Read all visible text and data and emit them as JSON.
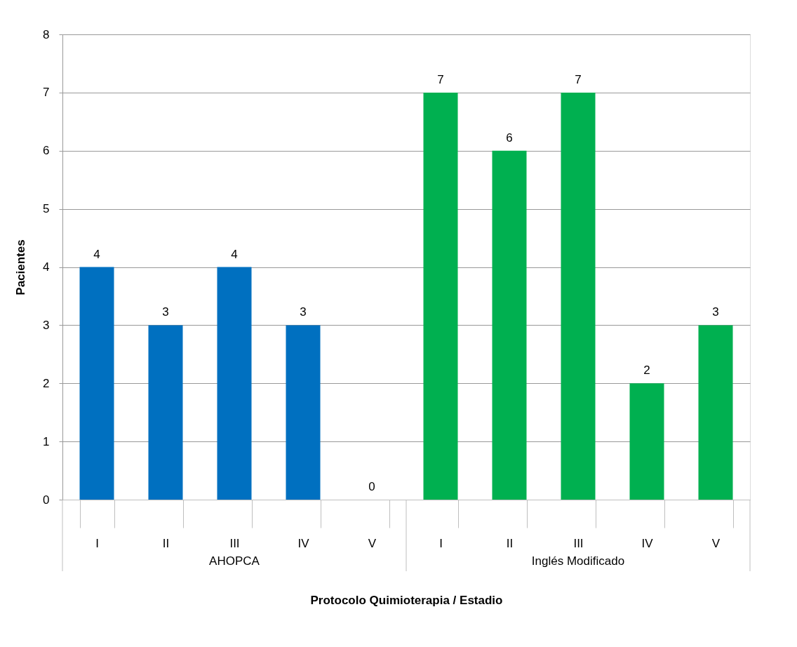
{
  "chart_data": {
    "type": "bar",
    "xlabel": "Protocolo Quimioterapia / Estadio",
    "ylabel": "Pacientes",
    "categories": [
      "I",
      "II",
      "III",
      "IV",
      "V",
      "I",
      "II",
      "III",
      "IV",
      "V"
    ],
    "series": [
      {
        "color": "#0070c0",
        "values": [
          4,
          3,
          4,
          3,
          0,
          null,
          null,
          null,
          null,
          null
        ]
      },
      {
        "color": "#00b050",
        "values": [
          null,
          null,
          null,
          null,
          null,
          7,
          6,
          7,
          2,
          3
        ]
      }
    ],
    "ylim": [
      0,
      8
    ],
    "yticks": [
      0,
      1,
      2,
      3,
      4,
      5,
      6,
      7,
      8
    ],
    "annotations": [
      "AHOPCA",
      "Inglés Modificado"
    ],
    "grid": "y",
    "legend": false,
    "data_labels": true
  }
}
